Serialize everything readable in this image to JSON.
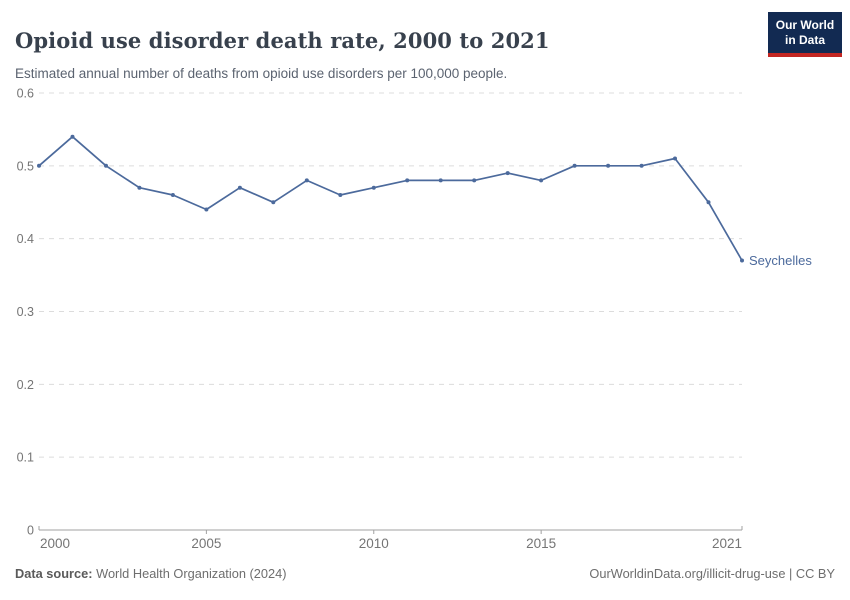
{
  "header": {
    "title": "Opioid use disorder death rate, 2000 to 2021",
    "subtitle": "Estimated annual number of deaths from opioid use disorders per 100,000 people.",
    "logo": {
      "line1": "Our World",
      "line2": "in Data"
    }
  },
  "chart_data": {
    "type": "line",
    "title": "Opioid use disorder death rate, 2000 to 2021",
    "subtitle": "Estimated annual number of deaths from opioid use disorders per 100,000 people.",
    "xlabel": "",
    "ylabel": "",
    "x": [
      2000,
      2001,
      2002,
      2003,
      2004,
      2005,
      2006,
      2007,
      2008,
      2009,
      2010,
      2011,
      2012,
      2013,
      2014,
      2015,
      2016,
      2017,
      2018,
      2019,
      2020,
      2021
    ],
    "series": [
      {
        "name": "Seychelles",
        "values": [
          0.5,
          0.54,
          0.5,
          0.47,
          0.46,
          0.44,
          0.47,
          0.45,
          0.48,
          0.46,
          0.47,
          0.48,
          0.48,
          0.48,
          0.49,
          0.48,
          0.5,
          0.5,
          0.5,
          0.51,
          0.45,
          0.37
        ]
      }
    ],
    "ylim": [
      0,
      0.6
    ],
    "yticks": [
      0,
      0.1,
      0.2,
      0.3,
      0.4,
      0.5,
      0.6
    ],
    "xticks": [
      2000,
      2005,
      2010,
      2015,
      2021
    ],
    "grid": "horizontal-dashed",
    "legend": "series-end-label"
  },
  "footer": {
    "source_label": "Data source:",
    "source_value": "World Health Organization (2024)",
    "link": "OurWorldinData.org/illicit-drug-use | CC BY"
  },
  "colors": {
    "line": "#4c6a9c",
    "grid": "#dcdcdc",
    "axis": "#a1a1a1",
    "tick_label": "#757575",
    "title": "#38414d",
    "subtitle": "#5b6370",
    "footnote": "#6e6e6e",
    "logo_navy": "#122a52",
    "logo_red": "#c32622"
  }
}
